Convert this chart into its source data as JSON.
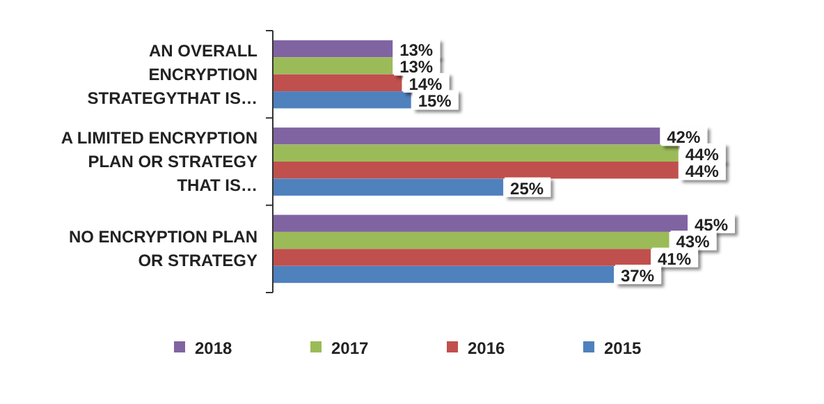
{
  "chart_data": {
    "type": "bar",
    "orientation": "horizontal",
    "legend": "bottom",
    "categories": [
      "AN OVERALL ENCRYPTION STRATEGYTHAT IS…",
      "A LIMITED ENCRYPTION PLAN OR STRATEGY THAT IS…",
      "NO ENCRYPTION PLAN OR STRATEGY"
    ],
    "series": [
      {
        "name": "2018",
        "color": "#8064a2",
        "values": [
          13,
          42,
          45
        ],
        "value_labels": [
          "13%",
          "42%",
          "45%"
        ]
      },
      {
        "name": "2017",
        "color": "#9bbb59",
        "values": [
          13,
          44,
          43
        ],
        "value_labels": [
          "13%",
          "44%",
          "43%"
        ]
      },
      {
        "name": "2016",
        "color": "#c0504d",
        "values": [
          14,
          44,
          41
        ],
        "value_labels": [
          "14%",
          "44%",
          "41%"
        ]
      },
      {
        "name": "2015",
        "color": "#4f81bd",
        "values": [
          15,
          25,
          37
        ],
        "value_labels": [
          "15%",
          "25%",
          "37%"
        ]
      }
    ]
  }
}
